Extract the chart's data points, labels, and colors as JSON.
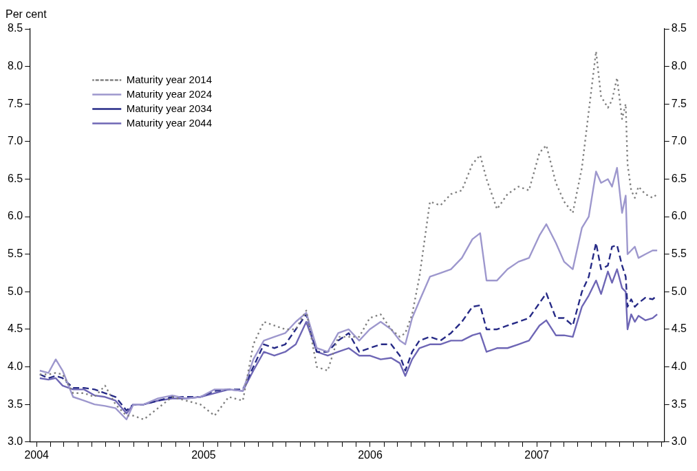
{
  "chart_data": {
    "type": "line",
    "ylabel": "Per cent",
    "x": [
      "2004-01-08",
      "2004-01-27",
      "2004-02-12",
      "2004-02-27",
      "2004-03-21",
      "2004-04-14",
      "2004-05-07",
      "2004-05-30",
      "2004-06-22",
      "2004-07-16",
      "2004-07-31",
      "2004-08-23",
      "2004-09-23",
      "2004-10-24",
      "2004-11-24",
      "2004-12-25",
      "2005-01-25",
      "2005-02-25",
      "2005-03-28",
      "2005-04-20",
      "2005-05-13",
      "2005-06-05",
      "2005-06-29",
      "2005-07-22",
      "2005-08-14",
      "2005-09-06",
      "2005-09-30",
      "2005-10-23",
      "2005-11-15",
      "2005-12-08",
      "2005-12-31",
      "2006-01-24",
      "2006-02-16",
      "2006-03-07",
      "2006-03-19",
      "2006-04-03",
      "2006-04-19",
      "2006-05-12",
      "2006-06-04",
      "2006-06-27",
      "2006-07-21",
      "2006-08-13",
      "2006-08-30",
      "2006-09-13",
      "2006-10-06",
      "2006-10-29",
      "2006-11-22",
      "2006-12-15",
      "2007-01-07",
      "2007-01-22",
      "2007-02-12",
      "2007-03-02",
      "2007-03-21",
      "2007-04-10",
      "2007-04-25",
      "2007-05-11",
      "2007-05-22",
      "2007-06-06",
      "2007-06-15",
      "2007-06-26",
      "2007-07-07",
      "2007-07-15",
      "2007-07-19",
      "2007-07-27",
      "2007-08-04",
      "2007-08-12",
      "2007-08-27",
      "2007-09-12",
      "2007-09-22"
    ],
    "series": [
      {
        "name": "Maturity year 2014",
        "color": "#808080",
        "line_style": "dotted",
        "values": [
          3.9,
          3.9,
          3.92,
          3.9,
          3.65,
          3.65,
          3.6,
          3.75,
          3.5,
          3.35,
          3.35,
          3.3,
          3.45,
          3.6,
          3.55,
          3.5,
          3.35,
          3.6,
          3.55,
          4.3,
          4.6,
          4.55,
          4.5,
          4.5,
          4.75,
          4.0,
          3.95,
          4.4,
          4.4,
          4.4,
          4.65,
          4.7,
          4.5,
          4.4,
          4.45,
          4.7,
          5.2,
          6.2,
          6.15,
          6.3,
          6.35,
          6.7,
          6.82,
          6.5,
          6.1,
          6.3,
          6.4,
          6.35,
          6.85,
          6.95,
          6.45,
          6.2,
          6.05,
          6.65,
          7.4,
          8.2,
          7.6,
          7.45,
          7.55,
          7.85,
          7.3,
          7.5,
          6.7,
          6.35,
          6.25,
          6.4,
          6.3,
          6.25,
          6.3
        ]
      },
      {
        "name": "Maturity year 2024",
        "color": "#9d97cd",
        "line_style": "solid",
        "values": [
          3.95,
          3.92,
          4.1,
          3.95,
          3.6,
          3.55,
          3.5,
          3.48,
          3.45,
          3.3,
          3.5,
          3.5,
          3.58,
          3.62,
          3.58,
          3.6,
          3.7,
          3.7,
          3.68,
          4.1,
          4.35,
          4.4,
          4.45,
          4.6,
          4.72,
          4.25,
          4.2,
          4.45,
          4.5,
          4.35,
          4.5,
          4.6,
          4.5,
          4.35,
          4.3,
          4.65,
          4.88,
          5.2,
          5.25,
          5.3,
          5.45,
          5.7,
          5.78,
          5.15,
          5.15,
          5.3,
          5.4,
          5.45,
          5.75,
          5.9,
          5.65,
          5.4,
          5.3,
          5.85,
          6.0,
          6.6,
          6.45,
          6.5,
          6.4,
          6.65,
          6.05,
          6.28,
          5.5,
          5.55,
          5.6,
          5.45,
          5.5,
          5.55,
          5.55
        ]
      },
      {
        "name": "Maturity year 2034",
        "color": "#262a86",
        "line_style": "dashed",
        "values": [
          3.9,
          3.85,
          3.88,
          3.85,
          3.72,
          3.72,
          3.7,
          3.65,
          3.6,
          3.42,
          3.5,
          3.5,
          3.55,
          3.6,
          3.6,
          3.6,
          3.68,
          3.7,
          3.7,
          4.0,
          4.3,
          4.25,
          4.3,
          4.5,
          4.7,
          4.2,
          4.2,
          4.35,
          4.45,
          4.2,
          4.25,
          4.3,
          4.3,
          4.15,
          3.95,
          4.2,
          4.35,
          4.4,
          4.35,
          4.45,
          4.6,
          4.8,
          4.82,
          4.5,
          4.5,
          4.55,
          4.6,
          4.65,
          4.85,
          4.98,
          4.65,
          4.65,
          4.55,
          5.0,
          5.2,
          5.65,
          5.3,
          5.35,
          5.6,
          5.62,
          5.35,
          5.2,
          4.8,
          4.9,
          4.8,
          4.85,
          4.92,
          4.9,
          4.95
        ]
      },
      {
        "name": "Maturity year 2044",
        "color": "#6e66b5",
        "line_style": "solid",
        "values": [
          3.85,
          3.83,
          3.85,
          3.75,
          3.7,
          3.7,
          3.62,
          3.6,
          3.55,
          3.38,
          3.5,
          3.5,
          3.55,
          3.58,
          3.58,
          3.6,
          3.65,
          3.7,
          3.68,
          3.95,
          4.2,
          4.15,
          4.2,
          4.3,
          4.6,
          4.2,
          4.15,
          4.2,
          4.25,
          4.15,
          4.15,
          4.1,
          4.12,
          4.05,
          3.88,
          4.1,
          4.25,
          4.3,
          4.3,
          4.35,
          4.35,
          4.42,
          4.45,
          4.2,
          4.25,
          4.25,
          4.3,
          4.35,
          4.55,
          4.62,
          4.42,
          4.42,
          4.4,
          4.8,
          4.95,
          5.15,
          4.97,
          5.27,
          5.12,
          5.3,
          5.05,
          5.0,
          4.5,
          4.7,
          4.6,
          4.68,
          4.62,
          4.65,
          4.7
        ]
      }
    ],
    "xlim": [
      "2003-12-17",
      "2007-10-08"
    ],
    "xticks": [
      {
        "value": "2004-01-01",
        "label": "2004"
      },
      {
        "value": "2004-02-01",
        "label": null
      },
      {
        "value": "2004-03-01",
        "label": null
      },
      {
        "value": "2004-04-01",
        "label": null
      },
      {
        "value": "2004-05-01",
        "label": null
      },
      {
        "value": "2004-06-01",
        "label": null
      },
      {
        "value": "2004-07-01",
        "label": null
      },
      {
        "value": "2004-08-01",
        "label": null
      },
      {
        "value": "2004-09-01",
        "label": null
      },
      {
        "value": "2004-10-01",
        "label": null
      },
      {
        "value": "2004-11-01",
        "label": null
      },
      {
        "value": "2004-12-01",
        "label": null
      },
      {
        "value": "2005-01-01",
        "label": "2005"
      },
      {
        "value": "2005-02-01",
        "label": null
      },
      {
        "value": "2005-03-01",
        "label": null
      },
      {
        "value": "2005-04-01",
        "label": null
      },
      {
        "value": "2005-05-01",
        "label": null
      },
      {
        "value": "2005-06-01",
        "label": null
      },
      {
        "value": "2005-07-01",
        "label": null
      },
      {
        "value": "2005-08-01",
        "label": null
      },
      {
        "value": "2005-09-01",
        "label": null
      },
      {
        "value": "2005-10-01",
        "label": null
      },
      {
        "value": "2005-11-01",
        "label": null
      },
      {
        "value": "2005-12-01",
        "label": null
      },
      {
        "value": "2006-01-01",
        "label": "2006"
      },
      {
        "value": "2006-02-01",
        "label": null
      },
      {
        "value": "2006-03-01",
        "label": null
      },
      {
        "value": "2006-04-01",
        "label": null
      },
      {
        "value": "2006-05-01",
        "label": null
      },
      {
        "value": "2006-06-01",
        "label": null
      },
      {
        "value": "2006-07-01",
        "label": null
      },
      {
        "value": "2006-08-01",
        "label": null
      },
      {
        "value": "2006-09-01",
        "label": null
      },
      {
        "value": "2006-10-01",
        "label": null
      },
      {
        "value": "2006-11-01",
        "label": null
      },
      {
        "value": "2006-12-01",
        "label": null
      },
      {
        "value": "2007-01-01",
        "label": "2007"
      },
      {
        "value": "2007-02-01",
        "label": null
      },
      {
        "value": "2007-03-01",
        "label": null
      },
      {
        "value": "2007-04-01",
        "label": null
      },
      {
        "value": "2007-05-01",
        "label": null
      },
      {
        "value": "2007-06-01",
        "label": null
      },
      {
        "value": "2007-07-01",
        "label": null
      },
      {
        "value": "2007-08-01",
        "label": null
      },
      {
        "value": "2007-09-01",
        "label": null
      },
      {
        "value": "2007-10-01",
        "label": null
      }
    ],
    "ylim": [
      3.0,
      8.5
    ],
    "yticks": [
      {
        "value": 3,
        "label": "3.0"
      },
      {
        "value": 3.5,
        "label": "3.5"
      },
      {
        "value": 4,
        "label": "4.0"
      },
      {
        "value": 4.5,
        "label": "4.5"
      },
      {
        "value": 5,
        "label": "5.0"
      },
      {
        "value": 5.5,
        "label": "5.5"
      },
      {
        "value": 6,
        "label": "6.0"
      },
      {
        "value": 6.5,
        "label": "6.5"
      },
      {
        "value": 7,
        "label": "7.0"
      },
      {
        "value": 7.5,
        "label": "7.5"
      },
      {
        "value": 8,
        "label": "8.0"
      },
      {
        "value": 8.5,
        "label": "8.5"
      }
    ],
    "y2lim": [
      3.0,
      8.5
    ],
    "y2ticks": [
      {
        "value": 3,
        "label": "3.0"
      },
      {
        "value": 3.5,
        "label": "3.5"
      },
      {
        "value": 4,
        "label": "4.0"
      },
      {
        "value": 4.5,
        "label": "4.5"
      },
      {
        "value": 5,
        "label": "5.0"
      },
      {
        "value": 5.5,
        "label": "5.5"
      },
      {
        "value": 6,
        "label": "6.0"
      },
      {
        "value": 6.5,
        "label": "6.5"
      },
      {
        "value": 7,
        "label": "7.0"
      },
      {
        "value": 7.5,
        "label": "7.5"
      },
      {
        "value": 8,
        "label": "8.0"
      },
      {
        "value": 8.5,
        "label": "8.5"
      }
    ],
    "grid": false,
    "legend": "top left",
    "marker": "none"
  }
}
